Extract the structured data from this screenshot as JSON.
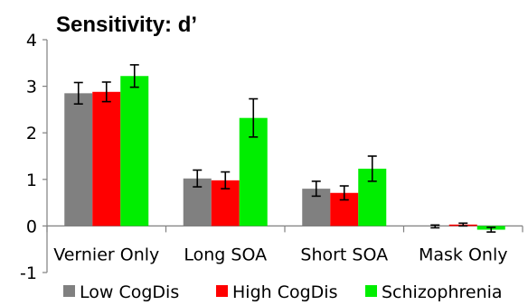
{
  "chart_data": {
    "type": "bar",
    "title": "Sensitivity: d’",
    "xlabel": "",
    "ylabel": "",
    "ylim": [
      -1,
      4
    ],
    "yticks": [
      4,
      3,
      2,
      1,
      0,
      -1
    ],
    "categories": [
      "Vernier Only",
      "Long SOA",
      "Short SOA",
      "Mask Only"
    ],
    "series": [
      {
        "name": "Low CogDis",
        "color": "#808080",
        "values": [
          2.85,
          1.02,
          0.8,
          -0.01
        ],
        "errors": [
          0.23,
          0.18,
          0.16,
          0.03
        ]
      },
      {
        "name": "High CogDis",
        "color": "#ff0000",
        "values": [
          2.88,
          0.98,
          0.71,
          0.03
        ],
        "errors": [
          0.21,
          0.18,
          0.15,
          0.03
        ]
      },
      {
        "name": "Schizophrenia",
        "color": "#00ee00",
        "values": [
          3.22,
          2.32,
          1.23,
          -0.08
        ],
        "errors": [
          0.24,
          0.41,
          0.27,
          0.05
        ]
      }
    ],
    "grid": false,
    "legend_position": "bottom"
  }
}
